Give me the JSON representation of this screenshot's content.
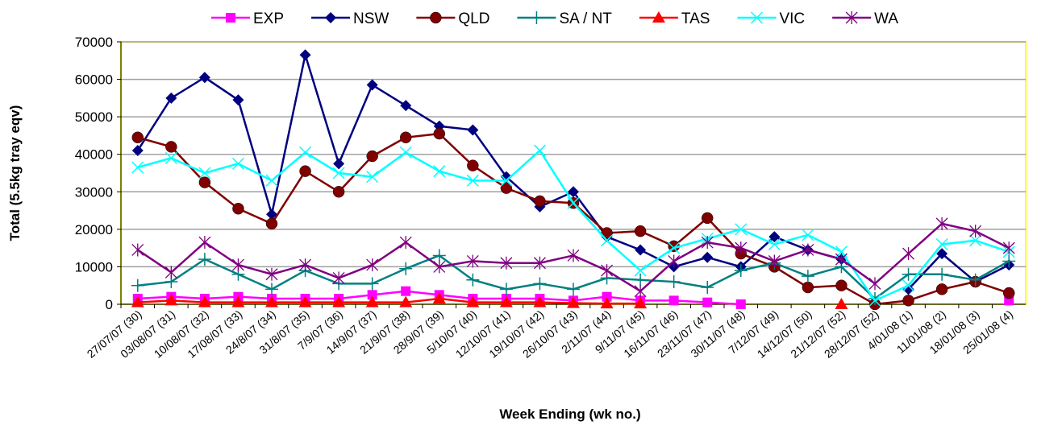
{
  "chart_data": {
    "type": "line",
    "x_label": "Week Ending (wk no.)",
    "y_label": "Total (5.5kg tray eqv)",
    "categories": [
      "27/07/07 (30)",
      "03/08/07 (31)",
      "10/08/07 (32)",
      "17/08/07 (33)",
      "24/8/07 (34)",
      "31/8/07 (35)",
      "7/9/07 (36)",
      "14/9/07 (37)",
      "21/9/07 (38)",
      "28/9/07 (39)",
      "5/10/07 (40)",
      "12/10/07 (41)",
      "19/10/07 (42)",
      "26/10/07 (43)",
      "2/11/07 (44)",
      "9/11/07 (45)",
      "16/11/07 (46)",
      "23/11/07 (47)",
      "30/11/07 (48)",
      "7/12/07 (49)",
      "14/12/07 (50)",
      "21/12/07 (52)",
      "28/12/07 (52)",
      "4/01/08 (1)",
      "11/01/08 (2)",
      "18/01/08 (3)",
      "25/01/08 (4)"
    ],
    "ylim": [
      0,
      70000
    ],
    "yticks": [
      0,
      10000,
      20000,
      30000,
      40000,
      50000,
      60000,
      70000
    ],
    "grid": true,
    "legend": "top",
    "series": [
      {
        "name": "EXP",
        "color": "#ff00ff",
        "marker": "square",
        "values": [
          1500,
          2000,
          1500,
          2000,
          1500,
          1500,
          1500,
          2500,
          3500,
          2500,
          1500,
          1500,
          1500,
          1000,
          2000,
          1000,
          1000,
          500,
          0,
          null,
          null,
          null,
          null,
          null,
          null,
          null,
          1000
        ]
      },
      {
        "name": "NSW",
        "color": "#000080",
        "marker": "diamond",
        "values": [
          41000,
          55000,
          60500,
          54500,
          24000,
          66500,
          37500,
          58500,
          53000,
          47500,
          46500,
          34000,
          26000,
          30000,
          18000,
          14500,
          10000,
          12500,
          10000,
          18000,
          14500,
          12000,
          null,
          4000,
          13500,
          6000,
          10500
        ]
      },
      {
        "name": "QLD",
        "color": "#800000",
        "marker": "circle",
        "values": [
          44500,
          42000,
          32500,
          25500,
          21500,
          35500,
          30000,
          39500,
          44500,
          45500,
          37000,
          31000,
          27500,
          27000,
          19000,
          19500,
          15500,
          23000,
          13500,
          10000,
          4500,
          5000,
          0,
          1000,
          4000,
          6000,
          3000
        ]
      },
      {
        "name": "SA / NT",
        "color": "#008080",
        "marker": "plus",
        "values": [
          5000,
          6000,
          12000,
          8000,
          4000,
          9000,
          5500,
          5500,
          9500,
          13000,
          6500,
          4000,
          5500,
          4000,
          7000,
          6500,
          6000,
          4500,
          9000,
          11000,
          7500,
          10000,
          1500,
          8000,
          8000,
          6500,
          11500
        ]
      },
      {
        "name": "TAS",
        "color": "#ff0000",
        "marker": "triangle",
        "values": [
          500,
          1000,
          500,
          500,
          500,
          500,
          500,
          500,
          500,
          1500,
          500,
          500,
          500,
          300,
          200,
          200,
          null,
          null,
          null,
          null,
          null,
          0,
          null,
          null,
          null,
          null,
          null
        ]
      },
      {
        "name": "VIC",
        "color": "#00ffff",
        "marker": "x",
        "values": [
          36500,
          39000,
          35000,
          37500,
          33000,
          40500,
          35000,
          34000,
          40500,
          35500,
          33000,
          33000,
          41000,
          27000,
          17000,
          9000,
          15000,
          17500,
          20000,
          16000,
          18500,
          14000,
          1000,
          5000,
          16000,
          17000,
          14000
        ]
      },
      {
        "name": "WA",
        "color": "#800080",
        "marker": "star",
        "values": [
          14500,
          8500,
          16500,
          10500,
          8000,
          10500,
          7000,
          10500,
          16500,
          10000,
          11500,
          11000,
          11000,
          13000,
          9000,
          3500,
          11500,
          16500,
          15000,
          11500,
          14500,
          12000,
          5500,
          13500,
          21500,
          19500,
          15000
        ]
      }
    ]
  }
}
